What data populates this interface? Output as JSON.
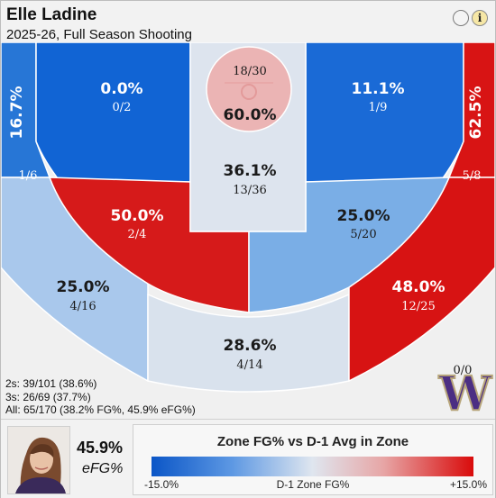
{
  "header": {
    "title": "Elle Ladine",
    "subtitle": "2025-26, Full Season Shooting",
    "info_glyph": "i"
  },
  "zones": {
    "left_corner": {
      "pct": "16.7%",
      "frac": "1/6",
      "color": "#2776d6"
    },
    "left_wing_upper": {
      "pct": "0.0%",
      "frac": "0/2",
      "color": "#1164d4"
    },
    "rim": {
      "frac": "18/30",
      "pct": "60.0%",
      "color": "#ebb4b4"
    },
    "paint": {
      "pct": "36.1%",
      "frac": "13/36",
      "color": "#dde4ee"
    },
    "right_wing_upper": {
      "pct": "11.1%",
      "frac": "1/9",
      "color": "#1a6ad6"
    },
    "right_corner": {
      "pct": "62.5%",
      "frac": "5/8",
      "color": "#d81414"
    },
    "left_mid": {
      "pct": "50.0%",
      "frac": "2/4",
      "color": "#d61a1a"
    },
    "right_mid": {
      "pct": "25.0%",
      "frac": "5/20",
      "color": "#7aaee6"
    },
    "left_three": {
      "pct": "25.0%",
      "frac": "4/16",
      "color": "#a9c8ec"
    },
    "right_three": {
      "pct": "48.0%",
      "frac": "12/25",
      "color": "#d71313"
    },
    "top_three": {
      "pct": "28.6%",
      "frac": "4/14",
      "color": "#d9e2ed"
    }
  },
  "logo": {
    "text": "W",
    "color": "#4b2e83",
    "accent": "#b7a57a",
    "overlay_text": "0/0"
  },
  "totals": {
    "twos": "2s: 39/101 (38.6%)",
    "threes": "3s: 26/69 (37.7%)",
    "all": "All: 65/170 (38.2% FG%, 45.9% eFG%)"
  },
  "footer": {
    "efg_value": "45.9%",
    "efg_label": "eFG%",
    "legend_title": "Zone FG% vs D-1 Avg in Zone",
    "legend_min": "-15.0%",
    "legend_mid": "D-1 Zone FG%",
    "legend_max": "+15.0%"
  }
}
